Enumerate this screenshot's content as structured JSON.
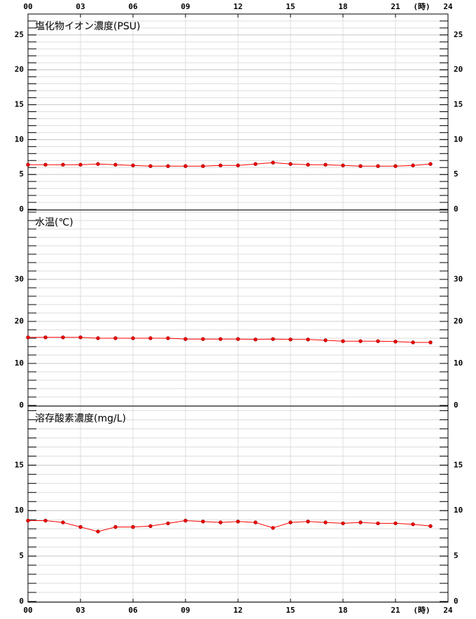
{
  "chart_data": [
    {
      "type": "line",
      "title": "塩化物イオン濃度(PSU)",
      "x_label": "(時)",
      "x": [
        0,
        1,
        2,
        3,
        4,
        5,
        6,
        7,
        8,
        9,
        10,
        11,
        12,
        13,
        14,
        15,
        16,
        17,
        18,
        19,
        20,
        21,
        22,
        23
      ],
      "xlim": [
        0,
        24
      ],
      "xticks": [
        {
          "value": 0,
          "label": "00"
        },
        {
          "value": 3,
          "label": "03"
        },
        {
          "value": 6,
          "label": "06"
        },
        {
          "value": 9,
          "label": "09"
        },
        12,
        15,
        18,
        21,
        24
      ],
      "ylim": [
        0,
        28
      ],
      "yticks": [
        0,
        5,
        10,
        15,
        20,
        25
      ],
      "minor_per_major": 5,
      "grid": true,
      "series": [
        {
          "color": "#ff0000",
          "values": [
            6.4,
            6.4,
            6.4,
            6.4,
            6.5,
            6.4,
            6.3,
            6.2,
            6.2,
            6.2,
            6.2,
            6.3,
            6.3,
            6.5,
            6.7,
            6.5,
            6.4,
            6.4,
            6.3,
            6.2,
            6.2,
            6.2,
            6.3,
            6.5
          ]
        }
      ]
    },
    {
      "type": "line",
      "title": "水温(℃)",
      "x": [
        0,
        1,
        2,
        3,
        4,
        5,
        6,
        7,
        8,
        9,
        10,
        11,
        12,
        13,
        14,
        15,
        16,
        17,
        18,
        19,
        20,
        21,
        22,
        23
      ],
      "xlim": [
        0,
        24
      ],
      "ylim": [
        0,
        46.5
      ],
      "yticks": [
        0,
        10,
        20,
        30
      ],
      "minor_per_major": 5,
      "grid": true,
      "series": [
        {
          "color": "#ff0000",
          "values": [
            16.2,
            16.2,
            16.2,
            16.2,
            16.0,
            16.0,
            16.0,
            16.0,
            16.0,
            15.8,
            15.8,
            15.8,
            15.8,
            15.7,
            15.8,
            15.7,
            15.7,
            15.5,
            15.3,
            15.3,
            15.3,
            15.2,
            15.0,
            15.0
          ]
        }
      ]
    },
    {
      "type": "line",
      "title": "溶存酸素濃度(mg/L)",
      "x_label": "(時)",
      "x": [
        0,
        1,
        2,
        3,
        4,
        5,
        6,
        7,
        8,
        9,
        10,
        11,
        12,
        13,
        14,
        15,
        16,
        17,
        18,
        19,
        20,
        21,
        22,
        23
      ],
      "xlim": [
        0,
        24
      ],
      "xticks": [
        {
          "value": 0,
          "label": "00"
        },
        {
          "value": 3,
          "label": "03"
        },
        {
          "value": 6,
          "label": "06"
        },
        {
          "value": 9,
          "label": "09"
        },
        12,
        15,
        18,
        21,
        24
      ],
      "ylim": [
        0,
        21.5
      ],
      "yticks": [
        0,
        5,
        10,
        15
      ],
      "minor_per_major": 5,
      "grid": true,
      "series": [
        {
          "color": "#ff0000",
          "values": [
            8.9,
            8.9,
            8.7,
            8.2,
            7.7,
            8.2,
            8.2,
            8.3,
            8.6,
            8.9,
            8.8,
            8.7,
            8.8,
            8.7,
            8.1,
            8.7,
            8.8,
            8.7,
            8.6,
            8.7,
            8.6,
            8.6,
            8.5,
            8.3
          ]
        }
      ]
    }
  ]
}
